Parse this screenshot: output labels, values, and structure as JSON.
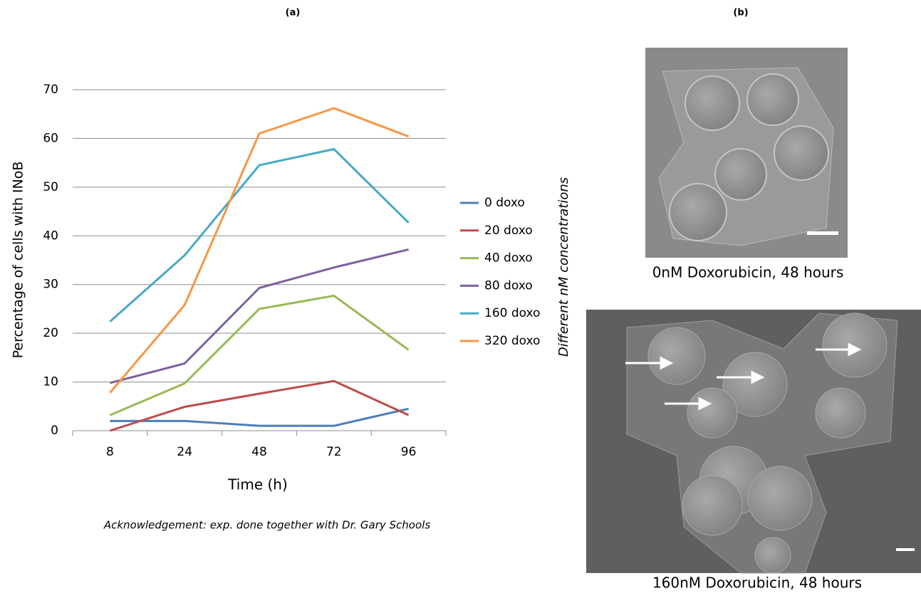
{
  "chart_data": {
    "type": "line",
    "panel_label": "(a)",
    "x_label": "Time (h)",
    "y_label": "Percentage of cells with  INoB",
    "categories": [
      "8",
      "24",
      "48",
      "72",
      "96"
    ],
    "series": [
      {
        "name": "0 doxo",
        "color": "#4a7ebb",
        "values": [
          2,
          2,
          1,
          1,
          4.5
        ]
      },
      {
        "name": "20 doxo",
        "color": "#be4b48",
        "values": [
          0,
          4.9,
          7.6,
          10.2,
          3.2
        ]
      },
      {
        "name": "40 doxo",
        "color": "#98b954",
        "values": [
          3.2,
          9.7,
          25,
          27.7,
          16.6
        ]
      },
      {
        "name": "80 doxo",
        "color": "#7d60a0",
        "values": [
          9.8,
          13.8,
          29.3,
          33.5,
          37.2
        ]
      },
      {
        "name": "160 doxo",
        "color": "#46aac5",
        "values": [
          22.4,
          36,
          54.5,
          57.8,
          42.7
        ]
      },
      {
        "name": "320 doxo",
        "color": "#f79646",
        "values": [
          7.8,
          25.8,
          61,
          66.2,
          60.4
        ]
      }
    ],
    "ylim": [
      0,
      70
    ],
    "yticks": [
      0,
      10,
      20,
      30,
      40,
      50,
      60,
      70
    ],
    "grid": true,
    "legend": "right",
    "note": "Acknowledgement: exp. done together with Dr. Gary Schools"
  },
  "panel_b": {
    "label": "(b)",
    "side_label": "Different  nM  concentrations",
    "images": [
      {
        "caption": "0nM Doxorubicin, 48 hours"
      },
      {
        "caption": "160nM Doxorubicin, 48 hours"
      }
    ]
  }
}
